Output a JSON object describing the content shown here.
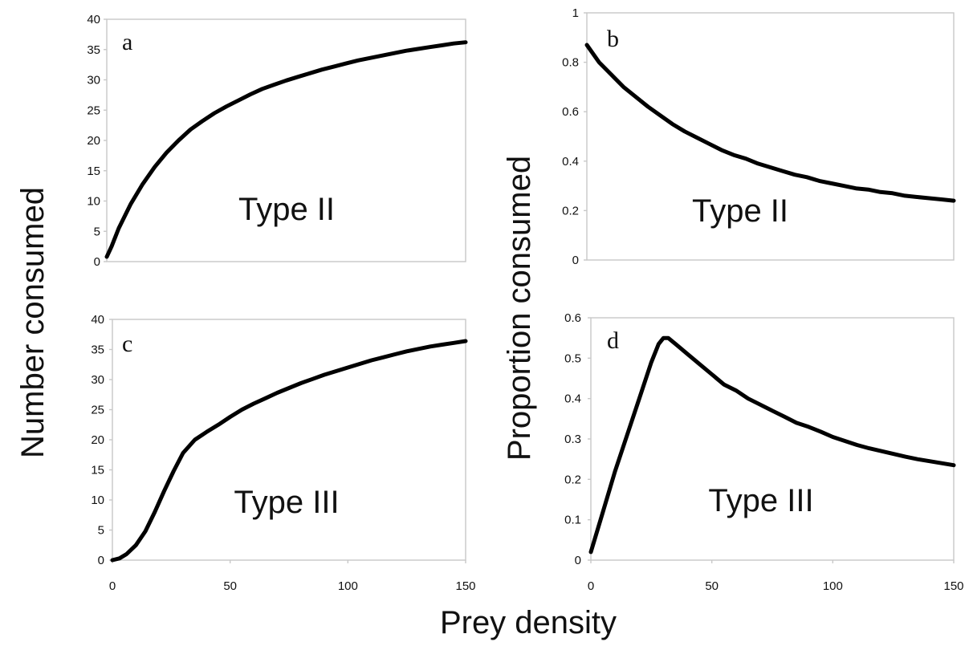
{
  "figure": {
    "ylabel_left": "Number consumed",
    "ylabel_right": "Proportion consumed",
    "xlabel": "Prey density"
  },
  "chart_data": [
    {
      "type": "line",
      "panel": "a",
      "annotation": "Type II",
      "xlabel": "",
      "ylabel": "",
      "xlim": [
        0,
        150
      ],
      "ylim": [
        0,
        40
      ],
      "yticks": [
        "0",
        "5",
        "10",
        "15",
        "20",
        "25",
        "30",
        "35",
        "40"
      ],
      "xticks": [],
      "grid": false,
      "series": [
        {
          "x": [
            0,
            2,
            5,
            10,
            15,
            20,
            25,
            30,
            35,
            40,
            45,
            50,
            55,
            60,
            65,
            70,
            75,
            80,
            85,
            90,
            95,
            100,
            105,
            110,
            115,
            120,
            125,
            130,
            135,
            140,
            145,
            150
          ],
          "y": [
            0.8,
            2.5,
            5.5,
            9.5,
            12.8,
            15.6,
            18.0,
            20.0,
            21.8,
            23.2,
            24.5,
            25.6,
            26.6,
            27.6,
            28.5,
            29.2,
            29.9,
            30.5,
            31.1,
            31.7,
            32.2,
            32.7,
            33.2,
            33.6,
            34.0,
            34.4,
            34.8,
            35.1,
            35.4,
            35.7,
            36.0,
            36.2
          ]
        }
      ]
    },
    {
      "type": "line",
      "panel": "b",
      "annotation": "Type II",
      "xlabel": "",
      "ylabel": "",
      "xlim": [
        0,
        150
      ],
      "ylim": [
        0,
        1
      ],
      "yticks": [
        "0",
        "0.2",
        "0.4",
        "0.6",
        "0.8",
        "1"
      ],
      "xticks": [],
      "grid": false,
      "series": [
        {
          "x": [
            0,
            5,
            10,
            15,
            20,
            25,
            30,
            35,
            40,
            45,
            50,
            55,
            60,
            65,
            70,
            75,
            80,
            85,
            90,
            95,
            100,
            105,
            110,
            115,
            120,
            125,
            130,
            135,
            140,
            145,
            150
          ],
          "y": [
            0.87,
            0.8,
            0.75,
            0.7,
            0.66,
            0.62,
            0.585,
            0.55,
            0.52,
            0.495,
            0.47,
            0.445,
            0.425,
            0.41,
            0.39,
            0.375,
            0.36,
            0.345,
            0.335,
            0.32,
            0.31,
            0.3,
            0.29,
            0.285,
            0.275,
            0.27,
            0.26,
            0.255,
            0.25,
            0.245,
            0.24
          ]
        }
      ]
    },
    {
      "type": "line",
      "panel": "c",
      "annotation": "Type III",
      "xlabel": "",
      "ylabel": "",
      "xlim": [
        0,
        150
      ],
      "ylim": [
        0,
        40
      ],
      "yticks": [
        "0",
        "5",
        "10",
        "15",
        "20",
        "25",
        "30",
        "35",
        "40"
      ],
      "xticks": [
        "0",
        "50",
        "100",
        "150"
      ],
      "grid": false,
      "series": [
        {
          "x": [
            0,
            3,
            6,
            10,
            14,
            18,
            22,
            26,
            30,
            35,
            40,
            45,
            50,
            55,
            60,
            65,
            70,
            75,
            80,
            85,
            90,
            95,
            100,
            105,
            110,
            115,
            120,
            125,
            130,
            135,
            140,
            145,
            150
          ],
          "y": [
            0,
            0.3,
            1.0,
            2.5,
            4.8,
            8.0,
            11.5,
            14.8,
            17.8,
            20.0,
            21.3,
            22.5,
            23.8,
            25.0,
            26.0,
            26.9,
            27.8,
            28.6,
            29.4,
            30.1,
            30.8,
            31.4,
            32.0,
            32.6,
            33.2,
            33.7,
            34.2,
            34.7,
            35.1,
            35.5,
            35.8,
            36.1,
            36.4
          ]
        }
      ]
    },
    {
      "type": "line",
      "panel": "d",
      "annotation": "Type III",
      "xlabel": "",
      "ylabel": "",
      "xlim": [
        0,
        150
      ],
      "ylim": [
        0,
        0.6
      ],
      "yticks": [
        "0",
        "0.1",
        "0.2",
        "0.3",
        "0.4",
        "0.5",
        "0.6"
      ],
      "xticks": [
        "0",
        "50",
        "100",
        "150"
      ],
      "grid": false,
      "series": [
        {
          "x": [
            0,
            5,
            10,
            15,
            20,
            25,
            28,
            30,
            32,
            35,
            40,
            45,
            50,
            55,
            60,
            65,
            70,
            75,
            80,
            85,
            90,
            95,
            100,
            105,
            110,
            115,
            120,
            125,
            130,
            135,
            140,
            145,
            150
          ],
          "y": [
            0.02,
            0.12,
            0.22,
            0.31,
            0.4,
            0.49,
            0.535,
            0.55,
            0.55,
            0.535,
            0.51,
            0.485,
            0.46,
            0.435,
            0.42,
            0.4,
            0.385,
            0.37,
            0.355,
            0.34,
            0.33,
            0.318,
            0.305,
            0.295,
            0.285,
            0.277,
            0.27,
            0.263,
            0.256,
            0.25,
            0.245,
            0.24,
            0.235
          ]
        }
      ]
    }
  ]
}
